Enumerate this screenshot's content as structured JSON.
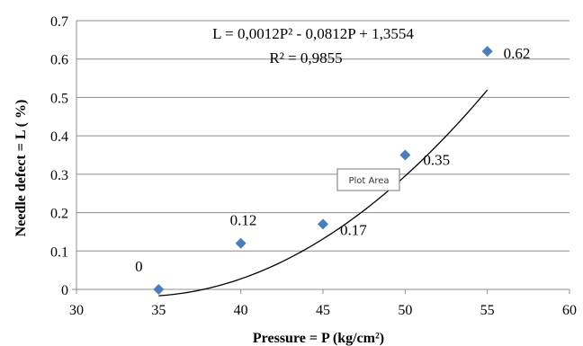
{
  "chart_data": {
    "type": "scatter",
    "xlabel": "Pressure = P (kg/cm²)",
    "ylabel": "Needle defect = L ( %)",
    "xlim": [
      30,
      60
    ],
    "ylim": [
      0,
      0.7
    ],
    "x_ticks": [
      "30",
      "35",
      "40",
      "45",
      "50",
      "55",
      "60"
    ],
    "y_ticks": [
      "0",
      "0.1",
      "0.2",
      "0.3",
      "0.4",
      "0.5",
      "0.6",
      "0.7"
    ],
    "grid": "horizontal",
    "marker_color": "#4a7ebb",
    "series": [
      {
        "points": [
          {
            "x": 35,
            "y": 0,
            "label": "0"
          },
          {
            "x": 40,
            "y": 0.12,
            "label": "0.12"
          },
          {
            "x": 45,
            "y": 0.17,
            "label": "0.17"
          },
          {
            "x": 50,
            "y": 0.35,
            "label": "0.35"
          },
          {
            "x": 55,
            "y": 0.62,
            "label": "0.62"
          }
        ]
      }
    ],
    "trendline": {
      "type": "polynomial",
      "equation": "L = 0,0012P² - 0,0812P + 1,3554",
      "r_squared": "R² = 0,9855",
      "coefficients": [
        0.0012,
        -0.0812,
        1.3554
      ],
      "x_range": [
        35,
        55
      ]
    }
  },
  "tooltip": {
    "text": "Plot Area"
  }
}
